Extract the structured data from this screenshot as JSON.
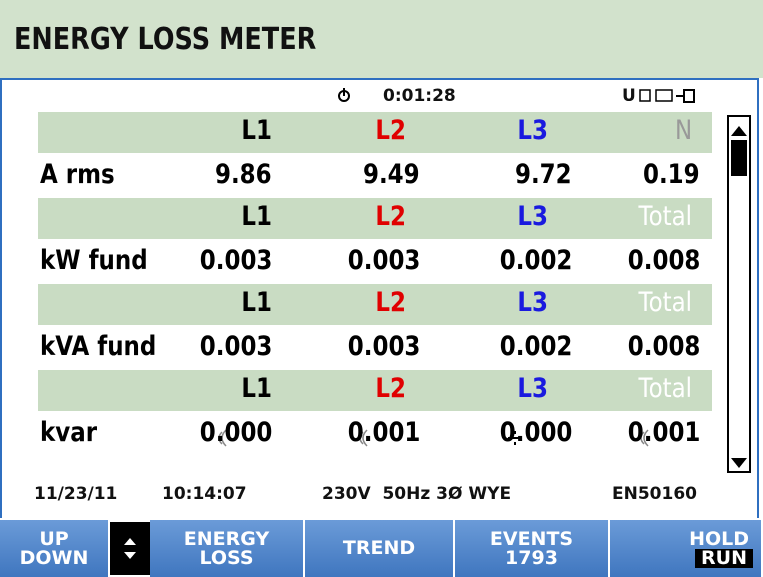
{
  "header": {
    "title": "ENERGY LOSS METER"
  },
  "status": {
    "timer": "0:01:28",
    "indicator": "U"
  },
  "table": {
    "rows": [
      {
        "kind": "header",
        "cells": [
          "L1",
          "L2",
          "L3",
          "N"
        ]
      },
      {
        "kind": "data",
        "label": "A rms",
        "cells": [
          "9.86",
          "9.49",
          "9.72",
          "0.19"
        ]
      },
      {
        "kind": "header",
        "cells": [
          "L1",
          "L2",
          "L3",
          "Total"
        ]
      },
      {
        "kind": "data",
        "label": "kW fund",
        "cells": [
          "0.003",
          "0.003",
          "0.002",
          "0.008"
        ]
      },
      {
        "kind": "header",
        "cells": [
          "L1",
          "L2",
          "L3",
          "Total"
        ]
      },
      {
        "kind": "data",
        "label": "kVA fund",
        "cells": [
          "0.003",
          "0.003",
          "0.002",
          "0.008"
        ]
      },
      {
        "kind": "header",
        "cells": [
          "L1",
          "L2",
          "L3",
          "Total"
        ]
      },
      {
        "kind": "data",
        "label": "kvar",
        "cells": [
          "0.000",
          "0.001",
          "0.000",
          "0.001"
        ]
      }
    ]
  },
  "footer": {
    "date": "11/23/11",
    "time": "10:14:07",
    "config": "230V  50Hz 3Ø WYE",
    "standard": "EN50160"
  },
  "softkeys": [
    [
      "UP",
      "DOWN"
    ],
    [
      "ENERGY",
      "LOSS"
    ],
    [
      "TREND"
    ],
    [
      "EVENTS",
      "1793"
    ],
    [
      "HOLD",
      "RUN"
    ]
  ]
}
